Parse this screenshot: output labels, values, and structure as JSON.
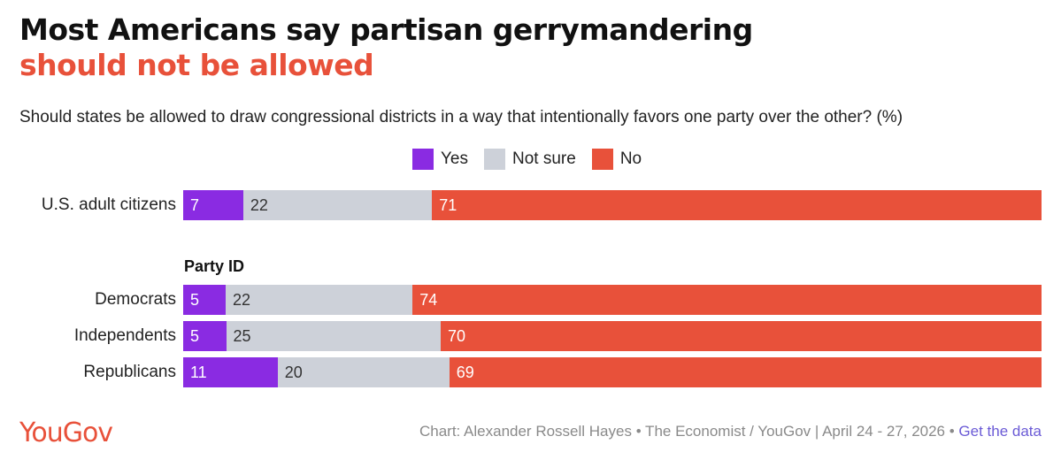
{
  "title_line1": "Most Americans say partisan gerrymandering",
  "title_line2": "should not be allowed",
  "subtitle": "Should states be allowed to draw congressional districts in a way that intentionally favors one party over the other? (%)",
  "legend": [
    {
      "label": "Yes",
      "color": "#8a2be2"
    },
    {
      "label": "Not sure",
      "color": "#cdd1d9"
    },
    {
      "label": "No",
      "color": "#e8513a"
    }
  ],
  "group_label": "Party ID",
  "footer": {
    "logo": "YouGov",
    "credit": "Chart: Alexander Rossell Hayes • The Economist / YouGov | April 24 - 27, 2026 • ",
    "link": "Get the data"
  },
  "chart_data": {
    "type": "bar",
    "orientation": "horizontal",
    "stacked": true,
    "categories": [
      "U.S. adult citizens",
      "Democrats",
      "Independents",
      "Republicans"
    ],
    "series": [
      {
        "name": "Yes",
        "values": [
          7,
          5,
          5,
          11
        ]
      },
      {
        "name": "Not sure",
        "values": [
          22,
          22,
          25,
          20
        ]
      },
      {
        "name": "No",
        "values": [
          71,
          74,
          70,
          69
        ]
      }
    ],
    "xlim": [
      0,
      100
    ],
    "grid": false,
    "legend_position": "top"
  }
}
